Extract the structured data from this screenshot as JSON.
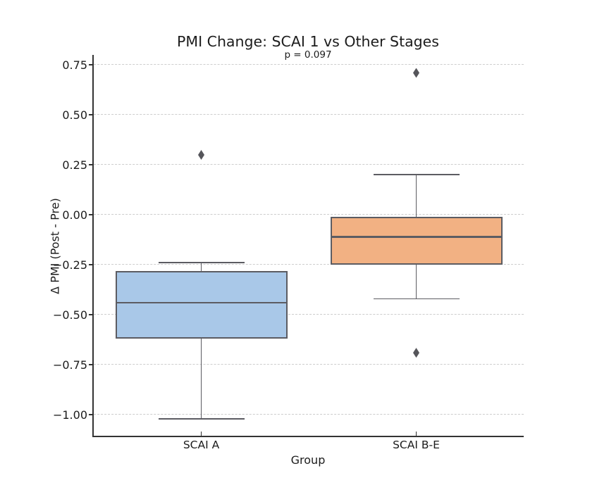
{
  "figure": {
    "background": "#ffffff"
  },
  "chart_data": {
    "type": "box",
    "title": "PMI Change: SCAI 1 vs Other Stages",
    "subtitle": "p = 0.097",
    "xlabel": "Group",
    "ylabel": "Δ PMI (Post - Pre)",
    "categories": [
      "SCAI A",
      "SCAI B-E"
    ],
    "series": [
      {
        "name": "SCAI A",
        "slug": "scai-a",
        "fill_color": "#a9c8e8",
        "whisker_low": -1.02,
        "q1": -0.62,
        "median": -0.44,
        "q3": -0.28,
        "whisker_high": -0.24,
        "outliers": [
          0.3
        ]
      },
      {
        "name": "SCAI B-E",
        "slug": "scai-b-e",
        "fill_color": "#f2b183",
        "whisker_low": -0.42,
        "q1": -0.25,
        "median": -0.11,
        "q3": -0.01,
        "whisker_high": 0.2,
        "outliers": [
          0.71,
          -0.69
        ]
      }
    ],
    "ylim": [
      -1.105,
      0.8
    ],
    "yticks": {
      "values": [
        0.75,
        0.5,
        0.25,
        0.0,
        -0.25,
        -0.5,
        -0.75,
        -1.0
      ],
      "labels": [
        "0.75",
        "0.50",
        "0.25",
        "0.00",
        "−0.25",
        "−0.50",
        "−0.75",
        "−1.00"
      ]
    },
    "grid": "horizontal-dashed",
    "legend": "none",
    "colors": {
      "box_edge": "#5c5c62",
      "whisker": "#5c5c62",
      "median": "#5c5c62",
      "outlier": "#55555a",
      "gridline": "#cdcdcd",
      "spine": "#333333",
      "text": "#1c1c1c"
    }
  }
}
